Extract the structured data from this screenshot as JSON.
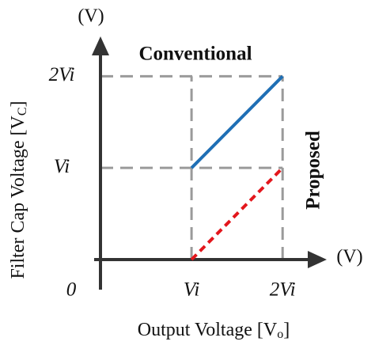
{
  "chart_data": {
    "type": "line",
    "ylabel": [
      "Filter Cap  Voltage [V",
      "C",
      "]"
    ],
    "xlabel": [
      "Output Voltage [V",
      "o",
      "]"
    ],
    "x_unit": "(V)",
    "y_unit": "(V)",
    "xlim": [
      0,
      2.45
    ],
    "ylim": [
      0,
      2.4
    ],
    "xticks": [
      0,
      {
        "value": 1,
        "label": "Vi"
      },
      {
        "value": 2,
        "label": "2Vi"
      }
    ],
    "yticks": [
      {
        "value": 1,
        "label": "Vi"
      },
      {
        "value": 2,
        "label": "2Vi"
      }
    ],
    "grid": true,
    "grid_color": "#9a9a9a",
    "x": [
      1,
      2
    ],
    "series": [
      {
        "name": "Conventional",
        "color": "#1f6fb5",
        "dash": false,
        "values": [
          1,
          2
        ]
      },
      {
        "name": "Proposed",
        "color": "#e3161c",
        "dash": true,
        "values": [
          0,
          1
        ]
      }
    ]
  }
}
